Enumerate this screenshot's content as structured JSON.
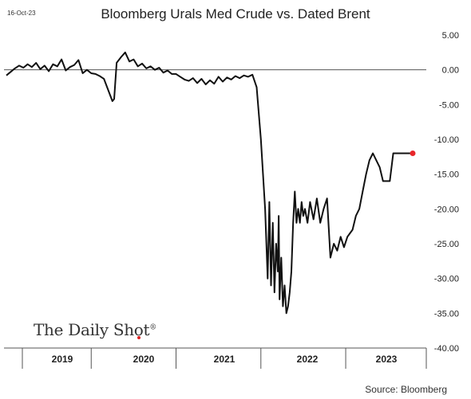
{
  "header": {
    "date": "16-Oct-23",
    "title": "Bloomberg Urals Med Crude vs. Dated Brent"
  },
  "footer": {
    "source": "Source: Bloomberg",
    "brand": "The Daily Shot",
    "brand_mark": "®"
  },
  "colors": {
    "line": "#111111",
    "marker": "#e8262a",
    "axis": "#555555"
  },
  "chart_data": {
    "type": "line",
    "title": "Bloomberg Urals Med Crude vs. Dated Brent",
    "xlabel": "",
    "ylabel": "",
    "ylim": [
      -40,
      5
    ],
    "yticks": [
      5,
      0,
      -5,
      -10,
      -15,
      -20,
      -25,
      -30,
      -35,
      -40
    ],
    "ytick_labels": [
      "5.00",
      "0.00",
      "-5.00",
      "-10.00",
      "-15.00",
      "-20.00",
      "-25.00",
      "-30.00",
      "-35.00",
      "-40.00"
    ],
    "x_categories": [
      "2019",
      "2020",
      "2021",
      "2022",
      "2023"
    ],
    "xlim": [
      2019.0,
      2023.95
    ],
    "zero_line": true,
    "grid": false,
    "y_axis_position": "right",
    "last_point_marker": {
      "x": 2023.79,
      "y": -12.0
    },
    "series": [
      {
        "x": [
          2019.0,
          2019.05,
          2019.1,
          2019.15,
          2019.2,
          2019.25,
          2019.3,
          2019.35,
          2019.4,
          2019.45,
          2019.5,
          2019.55,
          2019.6,
          2019.65,
          2019.7,
          2019.75,
          2019.8,
          2019.85,
          2019.9,
          2019.95,
          2020.0,
          2020.05,
          2020.1,
          2020.15,
          2020.2,
          2020.25,
          2020.27,
          2020.3,
          2020.35,
          2020.4,
          2020.45,
          2020.5,
          2020.55,
          2020.6,
          2020.65,
          2020.7,
          2020.75,
          2020.8,
          2020.85,
          2020.9,
          2020.95,
          2021.0,
          2021.05,
          2021.1,
          2021.15,
          2021.2,
          2021.25,
          2021.3,
          2021.35,
          2021.4,
          2021.45,
          2021.5,
          2021.55,
          2021.6,
          2021.65,
          2021.7,
          2021.75,
          2021.8,
          2021.85,
          2021.9,
          2021.95,
          2022.0,
          2022.05,
          2022.08,
          2022.1,
          2022.12,
          2022.14,
          2022.16,
          2022.18,
          2022.2,
          2022.21,
          2022.22,
          2022.24,
          2022.26,
          2022.28,
          2022.3,
          2022.32,
          2022.34,
          2022.36,
          2022.38,
          2022.4,
          2022.42,
          2022.44,
          2022.46,
          2022.48,
          2022.5,
          2022.52,
          2022.55,
          2022.58,
          2022.62,
          2022.66,
          2022.7,
          2022.74,
          2022.78,
          2022.82,
          2022.86,
          2022.9,
          2022.94,
          2022.98,
          2023.02,
          2023.05,
          2023.08,
          2023.12,
          2023.16,
          2023.2,
          2023.24,
          2023.28,
          2023.32,
          2023.36,
          2023.4,
          2023.44,
          2023.48,
          2023.52,
          2023.56,
          2023.6,
          2023.62,
          2023.64,
          2023.66,
          2023.68,
          2023.7,
          2023.74,
          2023.77,
          2023.79
        ],
        "values": [
          -0.8,
          -0.3,
          0.2,
          0.6,
          0.3,
          0.8,
          0.4,
          1.0,
          0.1,
          0.6,
          -0.2,
          0.8,
          0.5,
          1.5,
          -0.1,
          0.4,
          0.7,
          1.4,
          -0.5,
          0.0,
          -0.5,
          -0.6,
          -0.9,
          -1.3,
          -2.9,
          -4.5,
          -4.2,
          1.0,
          1.8,
          2.5,
          1.2,
          1.5,
          0.5,
          0.9,
          0.2,
          0.5,
          0.0,
          0.3,
          -0.4,
          -0.1,
          -0.6,
          -0.6,
          -1.0,
          -1.4,
          -1.6,
          -1.2,
          -1.9,
          -1.3,
          -2.1,
          -1.5,
          -2.0,
          -1.0,
          -1.7,
          -1.1,
          -1.4,
          -0.9,
          -1.2,
          -0.8,
          -1.0,
          -0.7,
          -2.5,
          -10.0,
          -20.0,
          -30.0,
          -19.0,
          -31.0,
          -22.0,
          -32.0,
          -25.0,
          -29.0,
          -21.0,
          -33.0,
          -27.0,
          -34.0,
          -31.0,
          -35.0,
          -34.0,
          -32.0,
          -29.0,
          -22.0,
          -17.5,
          -22.0,
          -20.0,
          -22.0,
          -19.0,
          -21.0,
          -20.0,
          -22.0,
          -19.0,
          -21.5,
          -18.5,
          -22.0,
          -20.0,
          -18.5,
          -27.0,
          -25.0,
          -26.0,
          -24.0,
          -25.5,
          -24.0,
          -23.5,
          -23.0,
          -21.0,
          -20.0,
          -17.5,
          -15.0,
          -13.0,
          -12.0,
          -13.0,
          -14.0,
          -16.0,
          -16.0,
          -16.0,
          -12.0,
          -12.0,
          -12.0,
          -12.0,
          -12.0,
          -12.0,
          -12.0,
          -12.0,
          -12.0,
          -12.0
        ]
      }
    ]
  }
}
